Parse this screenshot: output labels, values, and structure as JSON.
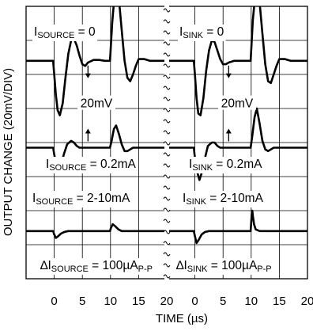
{
  "chart_data": {
    "type": "line",
    "xlabel": "TIME (µs)",
    "ylabel": "OUTPUT CHANGE (20mV/DIV)",
    "x_ticks": [
      "0",
      "5",
      "10",
      "15",
      "20",
      "0",
      "5",
      "10",
      "15",
      "20"
    ],
    "scale_marker": "20mV",
    "panels": [
      {
        "name": "source",
        "labels": [
          {
            "pre": "I",
            "sub": "SOURCE",
            "post": " = 0"
          },
          {
            "pre": "I",
            "sub": "SOURCE",
            "post": " = 0.2mA"
          },
          {
            "pre": "I",
            "sub": "SOURCE",
            "post": " = 2-10mA"
          },
          {
            "pre": "∆I",
            "sub": "SOURCE",
            "post": " = 100µA",
            "sub2": "P-P"
          }
        ],
        "series": [
          {
            "label_index": 0,
            "x": [
              -12,
              -0.2,
              0,
              0.3,
              0.6,
              1,
              1.5,
              2,
              2.5,
              3,
              3.5,
              4,
              4.5,
              5,
              5.5,
              6,
              7,
              8,
              9,
              9.9,
              10,
              10.3,
              10.7,
              11,
              11.5,
              12,
              12.5,
              13,
              13.5,
              14,
              14.5,
              15,
              16,
              17,
              18,
              19,
              20,
              27
            ],
            "y": [
              0,
              0,
              -8,
              -20,
              -29,
              -32,
              -25,
              -10,
              4,
              12,
              13,
              9,
              3,
              -2,
              -3,
              -1,
              0.5,
              0.5,
              0,
              0,
              5,
              22,
              38,
              44,
              36,
              18,
              0,
              -10,
              -12,
              -8,
              -3,
              1,
              1,
              0,
              0,
              0,
              0,
              0
            ]
          },
          {
            "label_index": 1,
            "x": [
              -12,
              -0.2,
              0,
              0.4,
              0.8,
              1.2,
              1.8,
              2.3,
              3,
              3.5,
              4,
              4.5,
              5,
              6,
              9,
              9.9,
              10.2,
              10.6,
              11,
              11.5,
              12,
              12.5,
              13,
              14,
              15,
              20,
              27
            ],
            "y": [
              0,
              0,
              -4,
              -10,
              -14,
              -10,
              -3,
              2,
              4,
              3,
              1,
              0,
              0,
              0,
              0,
              0,
              4,
              11,
              13,
              8,
              2,
              -2,
              -2,
              0,
              0,
              0,
              0
            ]
          },
          {
            "label_index": 2,
            "x": [
              -12,
              -0.2,
              0,
              0.3,
              0.7,
              1.2,
              1.8,
              2.5,
              3,
              9.9,
              10.1,
              10.4,
              10.8,
              11.4,
              12,
              20,
              27
            ],
            "y": [
              0,
              0,
              -2,
              -4,
              -3,
              -1.5,
              -0.5,
              0,
              0,
              0,
              2,
              4,
              3,
              1,
              0,
              0,
              0
            ]
          }
        ]
      },
      {
        "name": "sink",
        "labels": [
          {
            "pre": "I",
            "sub": "SINK",
            "post": " = 0"
          },
          {
            "pre": "I",
            "sub": "SINK",
            "post": " = 0.2mA"
          },
          {
            "pre": "I",
            "sub": "SINK",
            "post": " = 2-10mA"
          },
          {
            "pre": "∆I",
            "sub": "SINK",
            "post": " = 100µA",
            "sub2": "P-P"
          }
        ],
        "series": [
          {
            "label_index": 0,
            "x": [
              -12,
              -0.2,
              0,
              0.3,
              0.6,
              1,
              1.5,
              2,
              2.5,
              3,
              3.5,
              4,
              4.5,
              5,
              5.5,
              6,
              7,
              8,
              9,
              9.9,
              10,
              10.3,
              10.7,
              11,
              11.5,
              12,
              12.5,
              13,
              13.5,
              14,
              14.5,
              15,
              16,
              17,
              18,
              19,
              20,
              27
            ],
            "y": [
              0,
              0,
              -8,
              -22,
              -31,
              -32,
              -22,
              -6,
              6,
              12,
              11,
              6,
              1,
              -2,
              -2,
              -1,
              0,
              0,
              0,
              0,
              6,
              24,
              38,
              42,
              34,
              16,
              -2,
              -12,
              -13,
              -8,
              -3,
              1,
              1,
              0,
              0,
              0,
              0,
              0
            ]
          },
          {
            "label_index": 1,
            "x": [
              -12,
              -0.2,
              0,
              0.4,
              0.8,
              1.2,
              1.8,
              2.3,
              3,
              3.5,
              4,
              4.5,
              5,
              6,
              9,
              9.9,
              10.2,
              10.6,
              11,
              11.5,
              12,
              12.5,
              13,
              14,
              15,
              20,
              27
            ],
            "y": [
              0,
              0,
              -6,
              -14,
              -19,
              -15,
              -6,
              1,
              3,
              3,
              1,
              0,
              0,
              0,
              0,
              0,
              7,
              18,
              23,
              14,
              4,
              -1,
              -2,
              0,
              0,
              0,
              0
            ]
          },
          {
            "label_index": 2,
            "x": [
              -12,
              -0.2,
              0,
              0.3,
              0.7,
              1.2,
              1.8,
              2.5,
              3,
              9.9,
              10,
              10.1,
              10.2,
              10.3,
              10.5,
              10.8,
              11.5,
              12,
              20,
              27
            ],
            "y": [
              0,
              0,
              -3,
              -7,
              -5,
              -2,
              -0.5,
              0,
              0,
              0,
              5,
              10,
              12,
              9,
              4,
              1,
              0,
              0,
              0,
              0
            ]
          }
        ]
      }
    ]
  }
}
